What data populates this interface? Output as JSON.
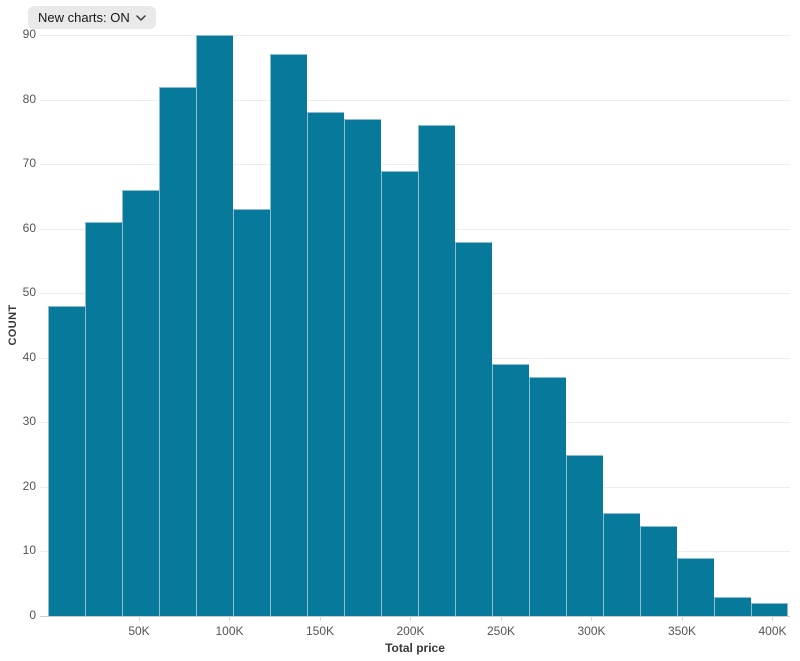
{
  "toolbar": {
    "new_charts_toggle": {
      "label": "New charts: ON",
      "icon": "chevron-down-icon"
    }
  },
  "chart_data": {
    "type": "bar",
    "subtype": "histogram",
    "title": "",
    "xlabel": "Total price",
    "ylabel": "COUNT",
    "x_tick_labels": [
      "50K",
      "100K",
      "150K",
      "200K",
      "250K",
      "300K",
      "350K",
      "400K"
    ],
    "y_tick_values": [
      0,
      10,
      20,
      30,
      40,
      50,
      60,
      70,
      80,
      90
    ],
    "ylim": [
      0,
      90
    ],
    "xlim_k": [
      0,
      400
    ],
    "bin_width_k": 20,
    "bin_starts_k": [
      0,
      20,
      40,
      60,
      80,
      100,
      120,
      140,
      160,
      180,
      200,
      220,
      240,
      260,
      280,
      300,
      320,
      340,
      360,
      380
    ],
    "counts": [
      48,
      61,
      66,
      82,
      90,
      63,
      87,
      78,
      77,
      69,
      76,
      58,
      39,
      37,
      25,
      16,
      14,
      9,
      3,
      2
    ],
    "grid": "horizontal",
    "legend": "none",
    "colors": {
      "bar_fill": "#077a9b",
      "bar_stroke": "#8fbccd",
      "gridline": "#ededed",
      "axis_line": "#cccccc",
      "tick_label": "#555555",
      "axis_title": "#383838"
    }
  }
}
